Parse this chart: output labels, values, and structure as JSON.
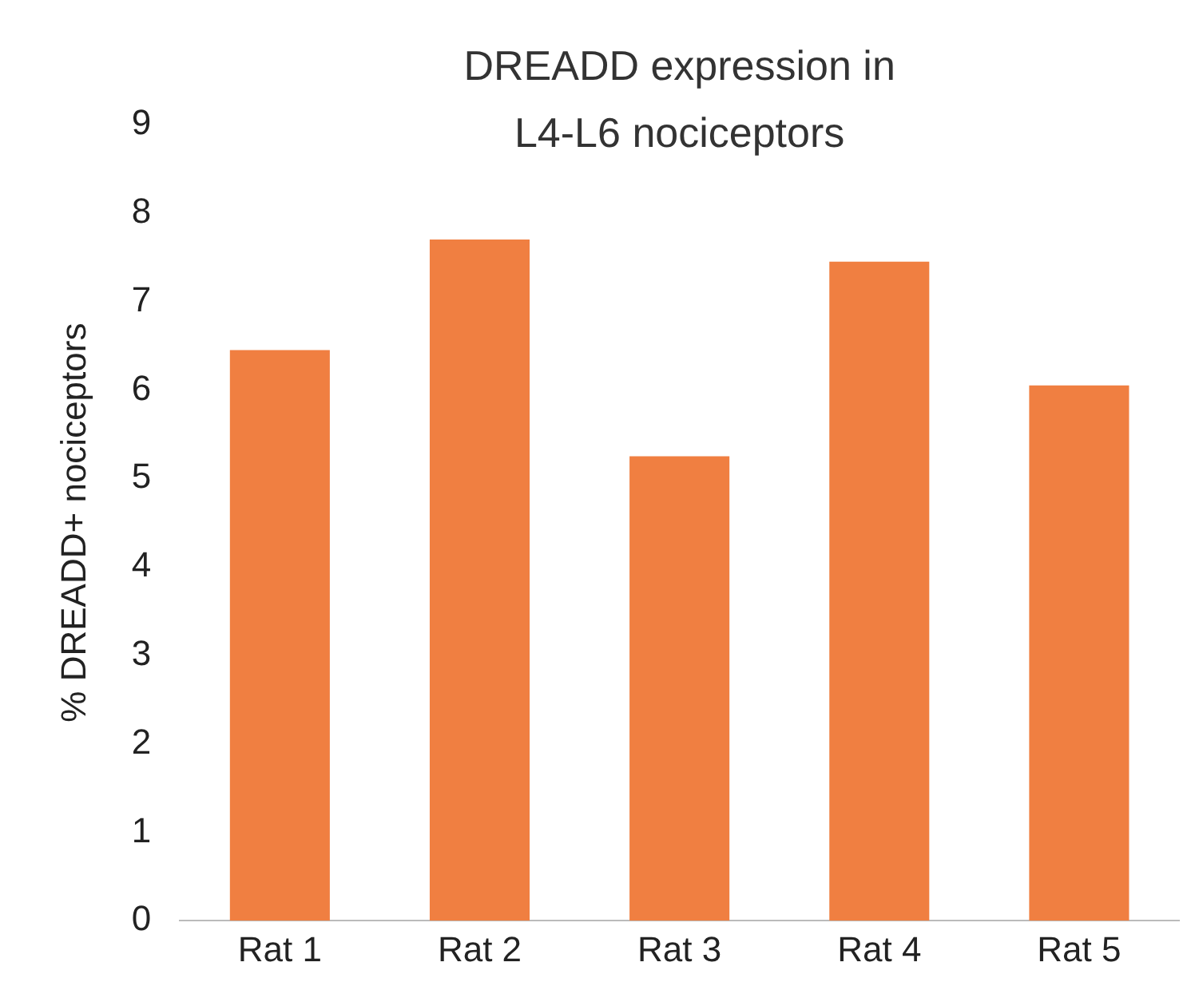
{
  "chart_data": {
    "type": "bar",
    "title": "DREADD expression in L4-L6 nociceptors",
    "ylabel": "% DREADD+ nociceptors",
    "categories": [
      "Rat 1",
      "Rat 2",
      "Rat 3",
      "Rat 4",
      "Rat 5"
    ],
    "values": [
      6.45,
      7.7,
      5.25,
      7.45,
      6.05
    ],
    "color": "#f07f41",
    "ylim": [
      0,
      9
    ],
    "yticks": [
      0,
      1,
      2,
      3,
      4,
      5,
      6,
      7,
      8,
      9
    ],
    "grid": false,
    "legend": false
  }
}
